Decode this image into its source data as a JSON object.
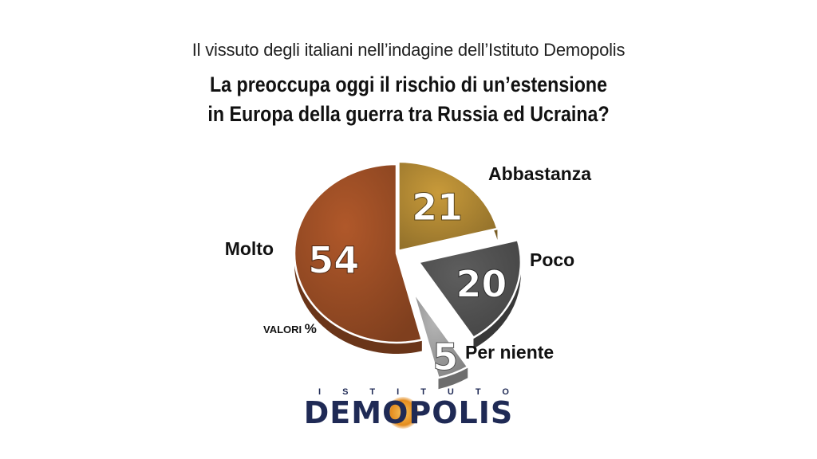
{
  "header": {
    "subtitle": "Il vissuto degli italiani nell’indagine dell’Istituto Demopolis",
    "question_line1": "La preoccupa oggi il rischio di un’estensione",
    "question_line2": "in Europa della guerra tra Russia ed Ucraina?"
  },
  "chart_data": {
    "type": "pie",
    "unit_note": "VALORI",
    "unit_symbol": "%",
    "slices": [
      {
        "label": "Abbastanza",
        "value": 21,
        "color": "#c89a3a"
      },
      {
        "label": "Poco",
        "value": 20,
        "color": "#5e5e5e"
      },
      {
        "label": "Per niente",
        "value": 5,
        "color": "#b5b5b5"
      },
      {
        "label": "Molto",
        "value": 54,
        "color": "#b0582a"
      }
    ]
  },
  "logo": {
    "top_text": "ISTITUTO",
    "main_text": "DEMOPOLIS",
    "brand_color": "#1f2a55"
  }
}
